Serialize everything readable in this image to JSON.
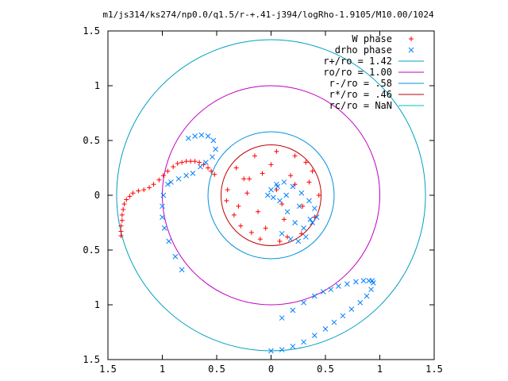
{
  "chart_data": {
    "type": "scatter",
    "title": "m1/js314/ks274/np0.0/q1.5/r-+.41-j394/logRho-1.9105/M10.00/1024",
    "xlabel": "",
    "ylabel": "",
    "xlim": [
      -1.5,
      1.5
    ],
    "ylim": [
      -1.5,
      1.5
    ],
    "x_ticks": [
      -1.5,
      -1,
      -0.5,
      0,
      0.5,
      1,
      1.5
    ],
    "x_tick_labels": [
      "1.5",
      "1",
      "0.5",
      "0",
      "0.5",
      "1",
      "1.5"
    ],
    "y_ticks": [
      1.5,
      1,
      0.5,
      0,
      -0.5,
      -1,
      -1.5
    ],
    "y_tick_labels": [
      "1.5",
      "1",
      "0.5",
      "0",
      "0.5",
      "1",
      "1.5"
    ],
    "grid": false,
    "legend_position": "top-right",
    "colors": {
      "w_phase": "#ff0000",
      "drho_phase": "#0080ff",
      "r_plus": "#00a0c0",
      "ro": "#c000c0",
      "r_minus": "#0090e0",
      "r_star": "#c00000",
      "rc": "#00c0c0"
    },
    "series": [
      {
        "name": "W phase",
        "marker": "+",
        "color": "#ff0000",
        "arms": [
          {
            "x": [
              -1.38,
              -1.38,
              -1.38,
              -1.37,
              -1.37,
              -1.36,
              -1.35,
              -1.33,
              -1.3,
              -1.27,
              -1.22,
              -1.17,
              -1.12,
              -1.08,
              -1.03,
              -0.99,
              -0.95,
              -0.9,
              -0.86,
              -0.82,
              -0.78,
              -0.74,
              -0.7,
              -0.66,
              -0.62,
              -0.58,
              -0.55,
              -0.52
            ],
            "y": [
              -0.37,
              -0.33,
              -0.28,
              -0.23,
              -0.18,
              -0.13,
              -0.08,
              -0.04,
              -0.01,
              0.02,
              0.04,
              0.05,
              0.07,
              0.1,
              0.14,
              0.18,
              0.22,
              0.26,
              0.29,
              0.3,
              0.31,
              0.31,
              0.31,
              0.3,
              0.28,
              0.25,
              0.22,
              0.19
            ]
          },
          {
            "x": [
              0.05,
              -0.15,
              -0.32,
              -0.4,
              -0.34,
              -0.18,
              0.08,
              0.28,
              0.4,
              0.44,
              0.38,
              0.22,
              0.0,
              -0.25,
              -0.41,
              -0.28,
              -0.05,
              0.12,
              0.29,
              0.35,
              0.18,
              -0.08,
              -0.22,
              -0.12,
              0.1,
              0.22,
              -0.3,
              -0.2,
              0.32,
              0.15,
              -0.1,
              0.05
            ],
            "y": [
              0.4,
              0.36,
              0.25,
              0.05,
              -0.18,
              -0.34,
              -0.42,
              -0.35,
              -0.2,
              0.0,
              0.22,
              0.36,
              0.28,
              0.15,
              -0.05,
              -0.28,
              -0.3,
              -0.22,
              -0.1,
              0.12,
              0.18,
              0.2,
              0.02,
              -0.15,
              -0.08,
              0.1,
              -0.1,
              0.15,
              0.3,
              -0.38,
              -0.4,
              0.05
            ]
          }
        ]
      },
      {
        "name": "drho phase",
        "marker": "x",
        "color": "#0080ff",
        "arms": [
          {
            "x": [
              -0.95,
              -0.99,
              -1.0,
              -1.0,
              -0.98,
              -0.94,
              -0.88,
              -0.82,
              -0.76,
              -0.7,
              -0.64,
              -0.58,
              -0.53,
              -0.51,
              -0.54,
              -0.6,
              -0.65,
              -0.72,
              -0.78,
              -0.85,
              -0.92
            ],
            "y": [
              0.1,
              0.0,
              -0.1,
              -0.2,
              -0.3,
              -0.42,
              -0.56,
              -0.68,
              0.52,
              0.54,
              0.55,
              0.54,
              0.5,
              0.42,
              0.35,
              0.3,
              0.26,
              0.2,
              0.18,
              0.15,
              0.12
            ]
          },
          {
            "x": [
              0.0,
              0.1,
              0.2,
              0.3,
              0.4,
              0.5,
              0.58,
              0.66,
              0.74,
              0.82,
              0.88,
              0.92,
              0.94,
              0.93,
              0.9,
              0.85,
              0.78,
              0.7,
              0.62,
              0.55,
              0.48,
              0.4,
              0.3,
              0.2,
              0.1
            ],
            "y": [
              -1.42,
              -1.41,
              -1.38,
              -1.34,
              -1.28,
              -1.22,
              -1.16,
              -1.1,
              -1.04,
              -0.98,
              -0.92,
              -0.86,
              -0.8,
              -0.78,
              -0.78,
              -0.78,
              -0.79,
              -0.81,
              -0.83,
              -0.86,
              -0.88,
              -0.92,
              -0.98,
              -1.05,
              -1.12
            ]
          },
          {
            "x": [
              0.0,
              0.05,
              0.12,
              0.2,
              0.28,
              0.35,
              0.4,
              0.42,
              0.38,
              0.3,
              0.22,
              0.15,
              0.08,
              0.02,
              -0.03,
              0.1,
              0.18,
              0.25,
              0.32,
              0.14,
              0.06,
              0.26,
              0.36
            ],
            "y": [
              0.05,
              0.1,
              0.12,
              0.08,
              0.02,
              -0.05,
              -0.12,
              -0.2,
              -0.25,
              -0.3,
              -0.25,
              -0.15,
              -0.05,
              -0.02,
              0.0,
              -0.35,
              -0.4,
              -0.42,
              -0.38,
              0.0,
              0.08,
              -0.1,
              -0.22
            ]
          }
        ]
      }
    ],
    "circles": [
      {
        "name": "r+/ro = 1.42",
        "r": 1.42,
        "color": "#00a0c0"
      },
      {
        "name": "ro/ro = 1.00",
        "r": 1.0,
        "color": "#c000c0"
      },
      {
        "name": "r-/ro = .58",
        "r": 0.58,
        "color": "#0090e0"
      },
      {
        "name": "r*/ro = .46",
        "r": 0.46,
        "color": "#c00000"
      },
      {
        "name": "rc/ro = NaN",
        "r": null,
        "color": "#00c0c0"
      }
    ],
    "legend": [
      {
        "label": "W phase",
        "kind": "plus",
        "color": "#ff0000"
      },
      {
        "label": "drho phase",
        "kind": "cross",
        "color": "#0080ff"
      },
      {
        "label": "r+/ro = 1.42",
        "kind": "line",
        "color": "#00a0c0"
      },
      {
        "label": "ro/ro = 1.00",
        "kind": "line",
        "color": "#c000c0"
      },
      {
        "label": "r-/ro = .58",
        "kind": "line",
        "color": "#0090e0"
      },
      {
        "label": "r*/ro = .46",
        "kind": "line",
        "color": "#c00000"
      },
      {
        "label": "rc/ro = NaN",
        "kind": "line",
        "color": "#00c0c0"
      }
    ]
  }
}
